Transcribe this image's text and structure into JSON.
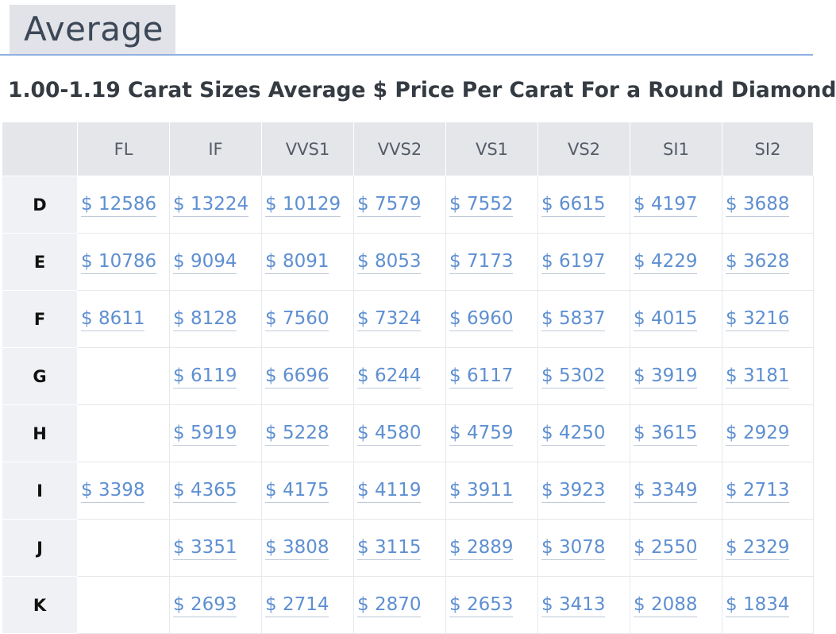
{
  "section": {
    "tab_label": "Average"
  },
  "table": {
    "title": "1.00-1.19 Carat Sizes Average $ Price Per Carat For a Round Diamond",
    "columns": [
      "FL",
      "IF",
      "VVS1",
      "VVS2",
      "VS1",
      "VS2",
      "SI1",
      "SI2"
    ],
    "rows": [
      {
        "color": "D",
        "prices": [
          "$ 12586",
          "$ 13224",
          "$ 10129",
          "$ 7579",
          "$ 7552",
          "$ 6615",
          "$ 4197",
          "$ 3688"
        ]
      },
      {
        "color": "E",
        "prices": [
          "$ 10786",
          "$ 9094",
          "$ 8091",
          "$ 8053",
          "$ 7173",
          "$ 6197",
          "$ 4229",
          "$ 3628"
        ]
      },
      {
        "color": "F",
        "prices": [
          "$ 8611",
          "$ 8128",
          "$ 7560",
          "$ 7324",
          "$ 6960",
          "$ 5837",
          "$ 4015",
          "$ 3216"
        ]
      },
      {
        "color": "G",
        "prices": [
          "",
          "$ 6119",
          "$ 6696",
          "$ 6244",
          "$ 6117",
          "$ 5302",
          "$ 3919",
          "$ 3181"
        ]
      },
      {
        "color": "H",
        "prices": [
          "",
          "$ 5919",
          "$ 5228",
          "$ 4580",
          "$ 4759",
          "$ 4250",
          "$ 3615",
          "$ 2929"
        ]
      },
      {
        "color": "I",
        "prices": [
          "$ 3398",
          "$ 4365",
          "$ 4175",
          "$ 4119",
          "$ 3911",
          "$ 3923",
          "$ 3349",
          "$ 2713"
        ]
      },
      {
        "color": "J",
        "prices": [
          "",
          "$ 3351",
          "$ 3808",
          "$ 3115",
          "$ 2889",
          "$ 3078",
          "$ 2550",
          "$ 2329"
        ]
      },
      {
        "color": "K",
        "prices": [
          "",
          "$ 2693",
          "$ 2714",
          "$ 2870",
          "$ 2653",
          "$ 3413",
          "$ 2088",
          "$ 1834"
        ]
      }
    ]
  },
  "colors": {
    "link": "#5e8fd1",
    "header_bg": "#e4e6ea",
    "row_head_bg": "#f0f1f4",
    "tab_bg": "#e1e3e8",
    "accent_line": "#8fb1e3"
  }
}
